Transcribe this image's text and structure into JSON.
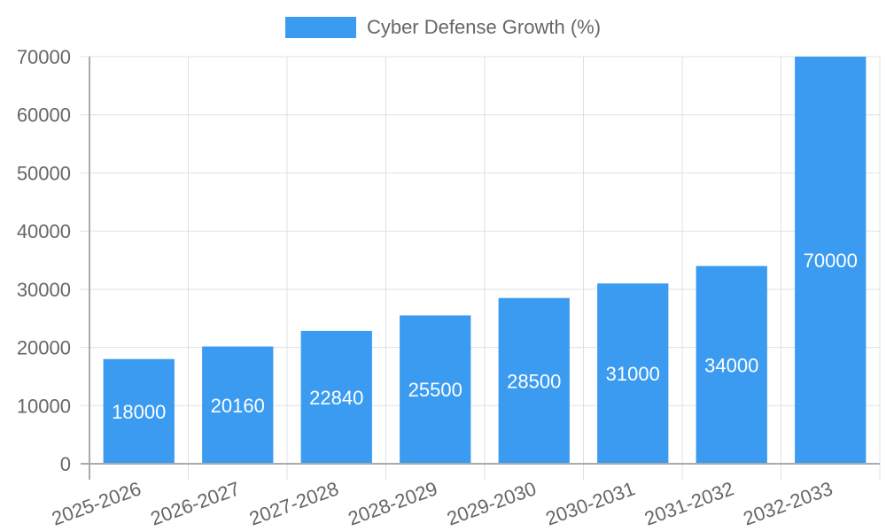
{
  "legend": {
    "label": "Cyber Defense Growth (%)",
    "color": "#3a9bf0"
  },
  "chart_data": {
    "type": "bar",
    "title": "",
    "xlabel": "",
    "ylabel": "",
    "categories": [
      "2025-2026",
      "2026-2027",
      "2027-2028",
      "2028-2029",
      "2029-2030",
      "2030-2031",
      "2031-2032",
      "2032-2033"
    ],
    "series": [
      {
        "name": "Cyber Defense Growth (%)",
        "values": [
          18000,
          20160,
          22840,
          25500,
          28500,
          31000,
          34000,
          70000
        ],
        "color": "#3a9bf0"
      }
    ],
    "ylim": [
      0,
      70000
    ],
    "yticks": [
      0,
      10000,
      20000,
      30000,
      40000,
      50000,
      60000,
      70000
    ],
    "grid": true,
    "legend_position": "top",
    "data_labels": true
  }
}
